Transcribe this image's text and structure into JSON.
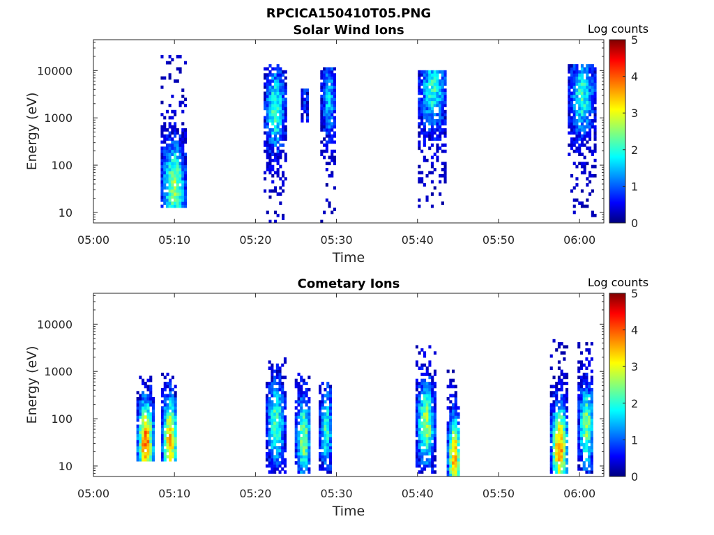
{
  "figure_title": "RPCICA150410T05.PNG",
  "chart_data": [
    {
      "type": "heatmap",
      "title": "Solar Wind Ions",
      "xlabel": "Time",
      "ylabel": "Energy (eV)",
      "yscale": "log",
      "ylim": [
        6,
        45000
      ],
      "xlim": [
        "05:00",
        "06:03"
      ],
      "x_ticks": [
        "05:00",
        "05:10",
        "05:20",
        "05:30",
        "05:40",
        "05:50",
        "06:00"
      ],
      "y_ticks": [
        "10",
        "100",
        "1000",
        "10000"
      ],
      "colorbar": {
        "label": "Log counts",
        "range": [
          0,
          5
        ],
        "ticks": [
          "0",
          "1",
          "2",
          "3",
          "4",
          "5"
        ],
        "colormap": "jet"
      },
      "bursts": [
        {
          "t": 9.8,
          "w": 3.0,
          "emin": 13,
          "emax": 20000,
          "peak": 2.6,
          "pe": 40
        },
        {
          "t": 22.3,
          "w": 2.6,
          "emin": 6,
          "emax": 13000,
          "peak": 2.2,
          "pe": 1500
        },
        {
          "t": 26.0,
          "w": 0.8,
          "emin": 700,
          "emax": 4000,
          "peak": 1.0,
          "pe": 2000
        },
        {
          "t": 28.9,
          "w": 1.8,
          "emin": 6,
          "emax": 12000,
          "peak": 1.6,
          "pe": 2500
        },
        {
          "t": 41.8,
          "w": 3.5,
          "emin": 13,
          "emax": 10000,
          "peak": 2.0,
          "pe": 4000
        },
        {
          "t": 60.2,
          "w": 3.3,
          "emin": 7,
          "emax": 13000,
          "peak": 2.0,
          "pe": 3000
        }
      ]
    },
    {
      "type": "heatmap",
      "title": "Cometary Ions",
      "xlabel": "Time",
      "ylabel": "Energy (eV)",
      "yscale": "log",
      "ylim": [
        6,
        45000
      ],
      "xlim": [
        "05:00",
        "06:03"
      ],
      "x_ticks": [
        "05:00",
        "05:10",
        "05:20",
        "05:30",
        "05:40",
        "05:50",
        "06:00"
      ],
      "y_ticks": [
        "10",
        "100",
        "1000",
        "10000"
      ],
      "colorbar": {
        "label": "Log counts",
        "range": [
          0,
          5
        ],
        "ticks": [
          "0",
          "1",
          "2",
          "3",
          "4",
          "5"
        ],
        "colormap": "jet"
      },
      "bursts": [
        {
          "t": 6.3,
          "w": 2.0,
          "emin": 12,
          "emax": 800,
          "peak": 3.9,
          "pe": 30
        },
        {
          "t": 9.3,
          "w": 1.9,
          "emin": 12,
          "emax": 900,
          "peak": 3.5,
          "pe": 35
        },
        {
          "t": 22.4,
          "w": 2.3,
          "emin": 7,
          "emax": 2000,
          "peak": 2.3,
          "pe": 80
        },
        {
          "t": 25.8,
          "w": 1.9,
          "emin": 7,
          "emax": 1000,
          "peak": 2.6,
          "pe": 40
        },
        {
          "t": 28.6,
          "w": 1.6,
          "emin": 7,
          "emax": 600,
          "peak": 2.1,
          "pe": 60
        },
        {
          "t": 40.9,
          "w": 2.3,
          "emin": 7,
          "emax": 4000,
          "peak": 2.7,
          "pe": 80
        },
        {
          "t": 44.4,
          "w": 1.6,
          "emin": 6,
          "emax": 1300,
          "peak": 3.7,
          "pe": 15
        },
        {
          "t": 57.4,
          "w": 2.1,
          "emin": 7,
          "emax": 4500,
          "peak": 3.7,
          "pe": 25
        },
        {
          "t": 60.7,
          "w": 1.9,
          "emin": 7,
          "emax": 4000,
          "peak": 2.6,
          "pe": 70
        }
      ]
    }
  ]
}
